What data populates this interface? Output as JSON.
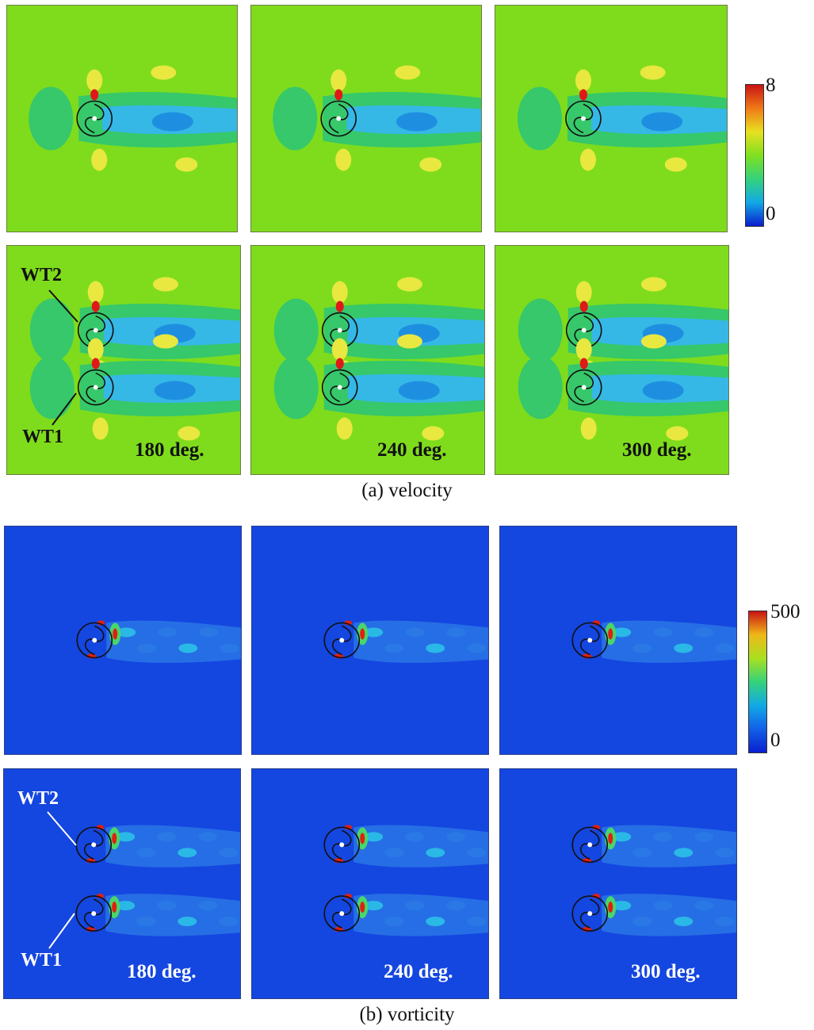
{
  "velocity": {
    "caption": "(a) velocity",
    "colorbar": {
      "max_label": "8",
      "min_label": "0",
      "colors": [
        "#0a1fcf",
        "#12a9e6",
        "#35d27b",
        "#7fe020",
        "#e8e020",
        "#f07a18",
        "#c81414"
      ]
    },
    "panel_colors": {
      "background": "#7fdc1c",
      "wake_dark": "#36c86a",
      "wake_core": "#35b8e6",
      "wake_deep": "#1e8fe0",
      "high": "#e8e840",
      "peak": "#e01818"
    },
    "angles": [
      "180 deg.",
      "240 deg.",
      "300 deg."
    ],
    "turbine_labels": {
      "upper": "WT2",
      "lower": "WT1"
    }
  },
  "vorticity": {
    "caption": "(b) vorticity",
    "colorbar": {
      "max_label": "500",
      "min_label": "0",
      "colors": [
        "#0a1fcf",
        "#1260e8",
        "#12a9e6",
        "#35d27b",
        "#a8e020",
        "#f0b818",
        "#c81414"
      ]
    },
    "panel_colors": {
      "background": "#1446e0",
      "weak": "#2a78e6",
      "medium": "#2ab8e6",
      "strong": "#49d66a",
      "peak": "#e02010"
    },
    "angles": [
      "180 deg.",
      "240 deg.",
      "300 deg."
    ],
    "turbine_labels": {
      "upper": "WT2",
      "lower": "WT1"
    }
  }
}
